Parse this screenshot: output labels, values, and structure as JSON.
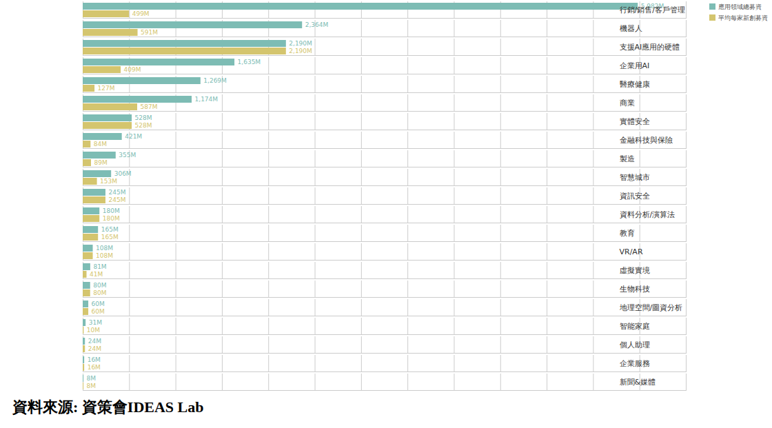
{
  "chart_data": {
    "type": "bar",
    "orientation": "horizontal",
    "caption": "資料來源: 資策會IDEAS Lab",
    "categories": [
      "行銷/銷售/客戶管理",
      "機器人",
      "支援AI應用的硬體",
      "企業用AI",
      "醫療健康",
      "商業",
      "實體安全",
      "金融科技與保險",
      "製造",
      "智慧城市",
      "資訊安全",
      "資料分析/演算法",
      "教育",
      "VR/AR",
      "虛擬實境",
      "生物科技",
      "地理空間/圖資分析",
      "智能家庭",
      "個人助理",
      "企業服務",
      "新聞&媒體"
    ],
    "series": [
      {
        "name": "應用領域總募資",
        "color": "#7dbcb4",
        "values": [
          5982,
          2364,
          2190,
          1635,
          1269,
          1174,
          528,
          421,
          355,
          306,
          245,
          180,
          165,
          108,
          81,
          80,
          60,
          31,
          24,
          16,
          8
        ],
        "value_labels": [
          "5,982M",
          "2,364M",
          "2,190M",
          "1,635M",
          "1,269M",
          "1,174M",
          "528M",
          "421M",
          "355M",
          "306M",
          "245M",
          "180M",
          "165M",
          "108M",
          "81M",
          "80M",
          "60M",
          "31M",
          "24M",
          "16M",
          "8M"
        ]
      },
      {
        "name": "平均每家新創募資",
        "color": "#d4c56e",
        "values": [
          499,
          591,
          2190,
          409,
          127,
          587,
          528,
          84,
          89,
          153,
          245,
          180,
          165,
          108,
          41,
          80,
          60,
          10,
          24,
          16,
          8
        ],
        "value_labels": [
          "499M",
          "591M",
          "2,190M",
          "409M",
          "127M",
          "587M",
          "528M",
          "84M",
          "89M",
          "153M",
          "245M",
          "180M",
          "165M",
          "108M",
          "41M",
          "80M",
          "60M",
          "10M",
          "24M",
          "16M",
          "8M"
        ]
      }
    ],
    "xlim": [
      0,
      6500
    ],
    "xticks": [
      0,
      500,
      1000,
      1500,
      2000,
      2500,
      3000,
      3500,
      4000,
      4500,
      5000,
      5500,
      6000,
      6500
    ],
    "grid": true,
    "tick_labels": false,
    "data_labels": true,
    "legend": "top-right"
  }
}
